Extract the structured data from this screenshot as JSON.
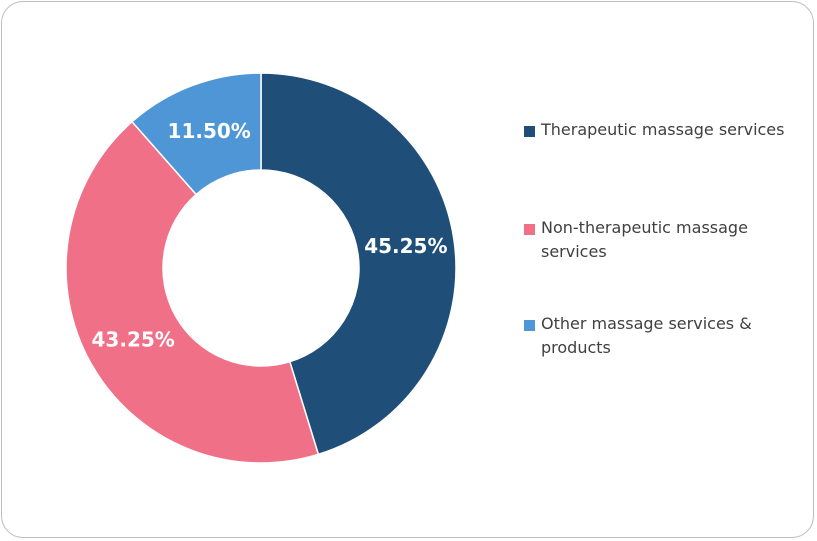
{
  "chart_data": {
    "type": "pie",
    "variant": "donut",
    "title": "",
    "legend_position": "right",
    "slices": [
      {
        "label": "Therapeutic massage services",
        "value": 45.25,
        "display": "45.25%",
        "color": "#1f4e79"
      },
      {
        "label": "Non-therapeutic massage services",
        "value": 43.25,
        "display": "43.25%",
        "color": "#f07087"
      },
      {
        "label": "Other massage services & products",
        "value": 11.5,
        "display": "11.50%",
        "color": "#4f96d6"
      }
    ]
  }
}
